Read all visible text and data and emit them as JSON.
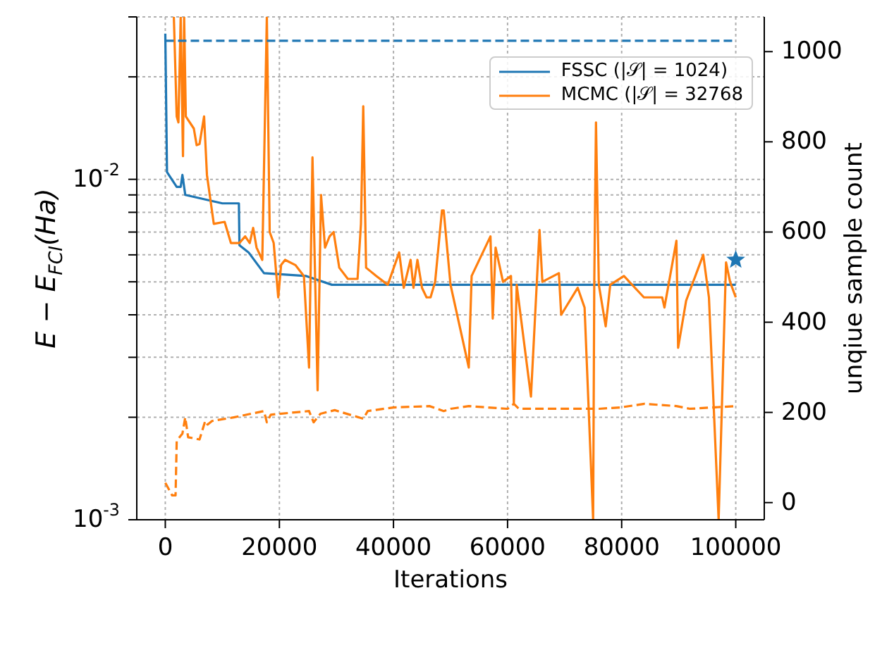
{
  "chart_data": {
    "type": "line",
    "xlabel": "Iterations",
    "ylabel": "E − E$_{FCI}$(Ha)",
    "y2label": "unqiue sample count",
    "log": "y",
    "grid": true,
    "legend": "top right",
    "xlim": [
      -5000,
      105000
    ],
    "xticks": [
      0,
      20000,
      40000,
      60000,
      80000,
      100000
    ],
    "ylim": [
      0.001,
      0.03
    ],
    "yticks": [
      {
        "value": 0.001,
        "label": "10$^{-3}$"
      },
      {
        "value": 0.002,
        "label": null
      },
      {
        "value": 0.003,
        "label": null
      },
      {
        "value": 0.004,
        "label": null
      },
      {
        "value": 0.005,
        "label": null
      },
      {
        "value": 0.006,
        "label": null
      },
      {
        "value": 0.007,
        "label": null
      },
      {
        "value": 0.008,
        "label": null
      },
      {
        "value": 0.009,
        "label": null
      },
      {
        "value": 0.01,
        "label": "10$^{-2}$"
      },
      {
        "value": 0.02,
        "label": null
      },
      {
        "value": 0.03,
        "label": null
      }
    ],
    "y2lim": [
      -38,
      1077
    ],
    "y2ticks": [
      0,
      200,
      400,
      600,
      800,
      1000
    ],
    "series": [
      {
        "name": "FSSC (|𝒮| = 1024)",
        "color": "#1f77b4",
        "line_style": "solid",
        "x": [
          0,
          300,
          2000,
          2700,
          3000,
          3500,
          10000,
          12900,
          13000,
          14600,
          17300,
          24700,
          29200,
          100000
        ],
        "values": [
          0.0268,
          0.0105,
          0.0095,
          0.0095,
          0.0103,
          0.009,
          0.0085,
          0.0085,
          0.0064,
          0.0061,
          0.0053,
          0.0052,
          0.0049,
          0.0049
        ]
      },
      {
        "name": "MCMC (|𝒮| = 32768",
        "color": "#ff7f0e",
        "line_style": "solid",
        "x": [
          1500,
          2000,
          2300,
          2700,
          3100,
          3300,
          3600,
          5000,
          5500,
          6000,
          6800,
          7300,
          8500,
          10400,
          11500,
          13000,
          14000,
          14800,
          15400,
          16000,
          17000,
          17800,
          18300,
          19000,
          19800,
          20300,
          21000,
          22800,
          24300,
          25200,
          25800,
          26700,
          27300,
          28000,
          28800,
          29500,
          30500,
          32000,
          33700,
          34300,
          34700,
          35200,
          37000,
          39000,
          41000,
          41800,
          43000,
          43500,
          44200,
          45000,
          45800,
          46500,
          47300,
          48500,
          48800,
          50000,
          53200,
          53700,
          57000,
          57400,
          57900,
          59200,
          60600,
          61100,
          61600,
          64100,
          65600,
          66100,
          69000,
          69400,
          72300,
          73500,
          75000,
          75200,
          75500,
          76000,
          77200,
          78000,
          80400,
          83900,
          87100,
          87500,
          89600,
          89900,
          91300,
          94300,
          95300,
          97000,
          98300,
          99000,
          100000
        ],
        "values": [
          0.03,
          0.0153,
          0.0147,
          0.03,
          0.0117,
          0.03,
          0.0153,
          0.0141,
          0.0126,
          0.0127,
          0.0153,
          0.0103,
          0.0074,
          0.0075,
          0.0065,
          0.0065,
          0.0068,
          0.0065,
          0.0072,
          0.0063,
          0.0058,
          0.03,
          0.007,
          0.0065,
          0.0045,
          0.0056,
          0.0058,
          0.0056,
          0.0052,
          0.0028,
          0.0116,
          0.0024,
          0.009,
          0.0063,
          0.0068,
          0.007,
          0.0055,
          0.0051,
          0.0051,
          0.0074,
          0.0164,
          0.0055,
          0.0052,
          0.0049,
          0.0061,
          0.0048,
          0.0058,
          0.0048,
          0.0058,
          0.0048,
          0.0045,
          0.0045,
          0.005,
          0.0081,
          0.0081,
          0.0049,
          0.0028,
          0.0052,
          0.0068,
          0.0039,
          0.0063,
          0.005,
          0.0052,
          0.0022,
          0.0049,
          0.0023,
          0.0071,
          0.005,
          0.0053,
          0.004,
          0.0048,
          0.0042,
          0.001,
          0.005,
          0.0147,
          0.0049,
          0.0037,
          0.0049,
          0.0052,
          0.0045,
          0.0045,
          0.0042,
          0.0066,
          0.0032,
          0.0044,
          0.006,
          0.0045,
          0.001,
          0.0057,
          0.005,
          0.0045
        ]
      },
      {
        "color": "#1f77b4",
        "line_style": "dashed",
        "axis": "y2",
        "x": [
          0,
          100000
        ],
        "values": [
          1024,
          1024
        ]
      },
      {
        "color": "#ff7f0e",
        "line_style": "dashed",
        "axis": "y2",
        "x": [
          0,
          1200,
          1800,
          2000,
          3000,
          3500,
          4000,
          6000,
          7000,
          7400,
          8200,
          12000,
          17300,
          17800,
          18500,
          25200,
          26000,
          27200,
          29700,
          34700,
          35500,
          40000,
          46300,
          48800,
          50000,
          53200,
          60000,
          61100,
          62000,
          70000,
          76000,
          79700,
          84000,
          89600,
          92000,
          100000
        ],
        "values": [
          44,
          16,
          16,
          137,
          153,
          189,
          145,
          140,
          181,
          173,
          181,
          189,
          203,
          178,
          195,
          203,
          178,
          197,
          205,
          186,
          203,
          211,
          214,
          203,
          208,
          214,
          208,
          219,
          208,
          208,
          208,
          211,
          219,
          214,
          208,
          214
        ]
      },
      {
        "color": "#1f77b4",
        "type": "scatter",
        "marker": "star",
        "x": [
          100000
        ],
        "values": [
          0.0058
        ]
      }
    ]
  }
}
